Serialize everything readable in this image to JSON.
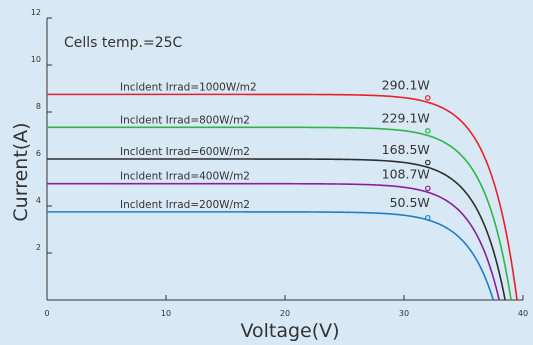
{
  "chart_data": {
    "type": "line",
    "title": "",
    "xlabel": "Voltage(V)",
    "ylabel": "Current(A)",
    "xlim": [
      0,
      40
    ],
    "ylim": [
      0,
      12
    ],
    "x_ticks": [
      0,
      10,
      20,
      30,
      40
    ],
    "y_ticks": [
      2,
      4,
      6,
      8,
      10,
      12
    ],
    "grid": false,
    "annotation": "Cells temp.=25C",
    "colors": {
      "background": "#d9e8f5",
      "axis": "#333333"
    },
    "series": [
      {
        "name": "Incldent Irrad=1000W/m2",
        "color": "#e8202a",
        "isc": 8.75,
        "voc": 39.5,
        "mpp_v": 32.0,
        "mpp_i": 8.6,
        "power_label": "290.1W"
      },
      {
        "name": "Incldent Irrad=800W/m2",
        "color": "#2db54a",
        "isc": 7.35,
        "voc": 39.0,
        "mpp_v": 32.0,
        "mpp_i": 7.2,
        "power_label": "229.1W"
      },
      {
        "name": "Incldent Irrad=600W/m2",
        "color": "#2e2e2e",
        "isc": 6.0,
        "voc": 38.5,
        "mpp_v": 32.0,
        "mpp_i": 5.85,
        "power_label": "168.5W"
      },
      {
        "name": "Incldent Irrad=400W/m2",
        "color": "#8a1f9a",
        "isc": 4.95,
        "voc": 38.0,
        "mpp_v": 32.0,
        "mpp_i": 4.75,
        "power_label": "108.7W"
      },
      {
        "name": "Incldent Irrad=200W/m2",
        "color": "#1f7fc4",
        "isc": 3.75,
        "voc": 37.5,
        "mpp_v": 32.0,
        "mpp_i": 3.5,
        "power_label": "50.5W"
      }
    ]
  }
}
